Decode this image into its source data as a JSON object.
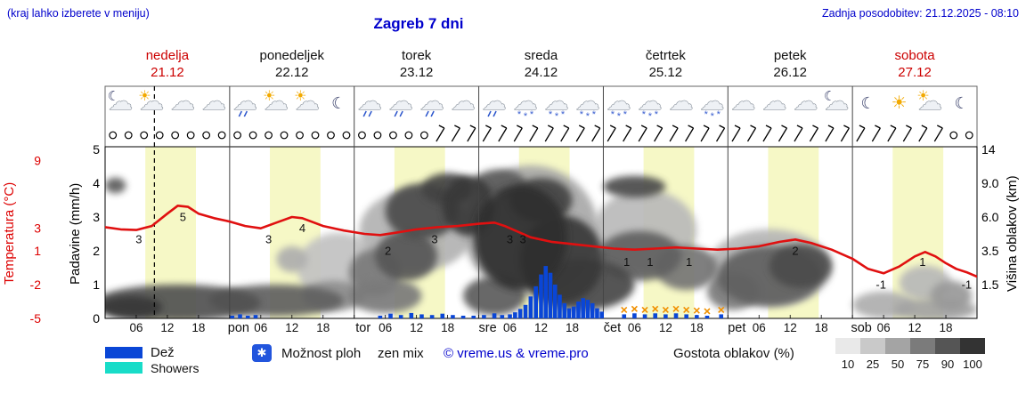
{
  "header": {
    "hint": "(kraj lahko izberete v meniju)",
    "title": "Zagreb 7 dni",
    "updated": "Zadnja posodobitev: 21.12.2025 - 08:10"
  },
  "axes": {
    "temp_label": "Temperatura (°C)",
    "precip_label": "Padavine (mm/h)",
    "cloud_label": "Višina oblakov (km)"
  },
  "days": [
    {
      "name": "nedelja",
      "date": "21.12",
      "color": "#cc0000"
    },
    {
      "name": "ponedeljek",
      "date": "22.12",
      "color": "#111111"
    },
    {
      "name": "torek",
      "date": "23.12",
      "color": "#111111"
    },
    {
      "name": "sreda",
      "date": "24.12",
      "color": "#111111"
    },
    {
      "name": "četrtek",
      "date": "25.12",
      "color": "#111111"
    },
    {
      "name": "petek",
      "date": "26.12",
      "color": "#111111"
    },
    {
      "name": "sobota",
      "date": "27.12",
      "color": "#cc0000"
    }
  ],
  "legend": {
    "rain": "Dež",
    "showers": "Showers",
    "chance_icon": "✱",
    "chance": "Možnost ploh",
    "frozen": "zen mix",
    "copyright": "© vreme.us & vreme.pro",
    "cloud_density": "Gostota oblakov (%)",
    "density_values": [
      "10",
      "25",
      "50",
      "75",
      "90",
      "100"
    ],
    "density_colors": [
      "#e9e9e9",
      "#c9c9c9",
      "#a4a4a4",
      "#7b7b7b",
      "#555555",
      "#333333"
    ]
  },
  "chart_data": {
    "type": "meteogram",
    "title": "Zagreb 7 dni",
    "x_unit": "hours_from_sunday_00",
    "x_range": [
      0,
      168
    ],
    "now_line_t": 9.5,
    "daylight_band_hours": [
      7.75,
      17.5
    ],
    "x_axis": {
      "hour_labels": [
        "06",
        "12",
        "18"
      ],
      "day_abbrevs": [
        "pon",
        "tor",
        "sre",
        "čet",
        "pet",
        "sob"
      ]
    },
    "temperature": {
      "unit": "°C",
      "color": "#e01010",
      "axis_ticks": [
        9,
        3,
        1,
        -2,
        -5
      ],
      "series": [
        [
          0,
          3.1
        ],
        [
          3,
          2.9
        ],
        [
          6,
          2.85
        ],
        [
          9,
          3.2
        ],
        [
          12,
          4.3
        ],
        [
          14,
          5.0
        ],
        [
          16,
          4.9
        ],
        [
          18,
          4.3
        ],
        [
          21,
          3.9
        ],
        [
          24,
          3.6
        ],
        [
          27,
          3.2
        ],
        [
          30,
          3.0
        ],
        [
          33,
          3.5
        ],
        [
          36,
          4.0
        ],
        [
          38,
          3.9
        ],
        [
          42,
          3.2
        ],
        [
          46,
          2.8
        ],
        [
          50,
          2.5
        ],
        [
          53,
          2.4
        ],
        [
          56,
          2.6
        ],
        [
          60,
          2.9
        ],
        [
          64,
          3.1
        ],
        [
          68,
          3.2
        ],
        [
          72,
          3.4
        ],
        [
          75,
          3.5
        ],
        [
          77,
          3.2
        ],
        [
          79,
          2.8
        ],
        [
          82,
          2.2
        ],
        [
          86,
          1.8
        ],
        [
          90,
          1.6
        ],
        [
          94,
          1.4
        ],
        [
          98,
          1.2
        ],
        [
          102,
          1.1
        ],
        [
          106,
          1.2
        ],
        [
          110,
          1.3
        ],
        [
          114,
          1.2
        ],
        [
          118,
          1.1
        ],
        [
          122,
          1.2
        ],
        [
          126,
          1.4
        ],
        [
          130,
          1.8
        ],
        [
          133,
          2.0
        ],
        [
          136,
          1.7
        ],
        [
          140,
          1.1
        ],
        [
          144,
          0.3
        ],
        [
          147,
          -0.6
        ],
        [
          150,
          -1.0
        ],
        [
          153,
          -0.4
        ],
        [
          156,
          0.5
        ],
        [
          158,
          0.9
        ],
        [
          160,
          0.5
        ],
        [
          162,
          -0.1
        ],
        [
          164,
          -0.6
        ],
        [
          166,
          -0.9
        ],
        [
          168,
          -1.3
        ]
      ],
      "point_labels": [
        [
          6.5,
          "3"
        ],
        [
          15,
          "5"
        ],
        [
          31.5,
          "3"
        ],
        [
          38,
          "4"
        ],
        [
          54.5,
          "2"
        ],
        [
          63.5,
          "3"
        ],
        [
          78,
          "3"
        ],
        [
          80.5,
          "3"
        ],
        [
          100.5,
          "1"
        ],
        [
          105,
          "1"
        ],
        [
          112.5,
          "1"
        ],
        [
          133,
          "2"
        ],
        [
          149.5,
          "-1"
        ],
        [
          157.5,
          "1"
        ],
        [
          166,
          "-1"
        ]
      ]
    },
    "precipitation": {
      "unit": "mm/h",
      "axis_ticks": [
        5,
        4,
        3,
        2,
        1,
        0
      ],
      "rain_color": "#0a46d6",
      "showers_color": "#18dcc8",
      "mix_color": "#f09000",
      "bars": [
        [
          24.5,
          0.08,
          "rain"
        ],
        [
          26,
          0.12,
          "rain"
        ],
        [
          27.5,
          0.08,
          "rain"
        ],
        [
          29,
          0.1,
          "rain"
        ],
        [
          53,
          0.08,
          "rain"
        ],
        [
          55,
          0.14,
          "rain"
        ],
        [
          57,
          0.1,
          "rain"
        ],
        [
          59,
          0.16,
          "rain"
        ],
        [
          61,
          0.12,
          "rain"
        ],
        [
          63,
          0.1,
          "rain"
        ],
        [
          65,
          0.14,
          "rain"
        ],
        [
          67,
          0.1,
          "rain"
        ],
        [
          69,
          0.08,
          "rain"
        ],
        [
          71,
          0.08,
          "rain"
        ],
        [
          73,
          0.1,
          "rain"
        ],
        [
          75,
          0.15,
          "rain"
        ],
        [
          76.5,
          0.1,
          "rain"
        ],
        [
          78,
          0.12,
          "rain"
        ],
        [
          79,
          0.18,
          "rain"
        ],
        [
          80,
          0.28,
          "rain"
        ],
        [
          81,
          0.4,
          "rain"
        ],
        [
          82,
          0.65,
          "rain"
        ],
        [
          83,
          0.95,
          "rain"
        ],
        [
          84,
          1.3,
          "rain"
        ],
        [
          84.9,
          1.55,
          "rain"
        ],
        [
          85.8,
          1.35,
          "rain"
        ],
        [
          86.7,
          1.0,
          "rain"
        ],
        [
          87.6,
          0.7,
          "rain"
        ],
        [
          88.5,
          0.45,
          "rain"
        ],
        [
          89.4,
          0.3,
          "rain"
        ],
        [
          90.3,
          0.35,
          "rain"
        ],
        [
          91.2,
          0.5,
          "rain"
        ],
        [
          92.1,
          0.6,
          "rain"
        ],
        [
          93,
          0.55,
          "rain"
        ],
        [
          93.9,
          0.45,
          "rain"
        ],
        [
          94.8,
          0.3,
          "rain"
        ],
        [
          95.7,
          0.2,
          "rain"
        ],
        [
          100,
          0.12,
          "mix"
        ],
        [
          102,
          0.15,
          "mix"
        ],
        [
          104,
          0.12,
          "mix"
        ],
        [
          106,
          0.15,
          "mix"
        ],
        [
          108,
          0.12,
          "mix"
        ],
        [
          110,
          0.15,
          "mix"
        ],
        [
          112,
          0.12,
          "mix"
        ],
        [
          114,
          0.1,
          "mix"
        ],
        [
          116,
          0.08,
          "mix"
        ],
        [
          118.7,
          0.12,
          "mix"
        ]
      ]
    },
    "cloud_height": {
      "unit": "km",
      "axis_ticks": [
        {
          "label": "14",
          "row": 5
        },
        {
          "label": "9.0",
          "row": 4
        },
        {
          "label": "6.0",
          "row": 3
        },
        {
          "label": "3.5",
          "row": 2
        },
        {
          "label": "1.5",
          "row": 1
        }
      ],
      "blobs": [
        [
          14,
          0.7,
          16,
          0.8,
          75
        ],
        [
          5,
          0.5,
          6,
          0.5,
          88
        ],
        [
          2,
          8.8,
          2,
          0.8,
          70
        ],
        [
          33,
          0.8,
          13,
          0.7,
          68
        ],
        [
          44,
          1.0,
          6,
          0.7,
          45
        ],
        [
          36,
          3,
          3,
          0.8,
          30
        ],
        [
          45,
          2.5,
          8,
          2,
          20
        ],
        [
          52,
          2.2,
          5,
          1.3,
          55
        ],
        [
          54,
          1,
          7,
          0.8,
          55
        ],
        [
          58,
          3.2,
          6,
          1.6,
          72
        ],
        [
          61,
          6.5,
          7,
          2.3,
          78
        ],
        [
          66,
          8.5,
          5,
          1.6,
          82
        ],
        [
          70,
          7,
          5,
          2.6,
          88
        ],
        [
          60,
          5,
          11,
          3,
          28
        ],
        [
          76,
          9,
          5,
          1.5,
          70
        ],
        [
          80,
          4.5,
          9,
          3.6,
          92
        ],
        [
          84,
          7.5,
          6,
          2,
          82
        ],
        [
          88,
          3,
          8,
          2.6,
          88
        ],
        [
          92,
          1.5,
          10,
          1.3,
          80
        ],
        [
          75,
          1,
          6,
          0.9,
          70
        ],
        [
          82,
          5,
          13,
          4.6,
          32
        ],
        [
          102,
          8.7,
          6,
          1.1,
          78
        ],
        [
          103,
          3.2,
          8,
          1.6,
          68
        ],
        [
          112,
          2.5,
          6,
          1.3,
          58
        ],
        [
          104,
          5,
          10,
          3,
          24
        ],
        [
          121,
          1.2,
          5,
          0.9,
          55
        ],
        [
          128,
          2,
          10,
          1.6,
          68
        ],
        [
          134,
          2.6,
          6,
          1.3,
          78
        ],
        [
          128,
          2.5,
          12,
          2.2,
          26
        ],
        [
          150,
          0.6,
          6,
          0.6,
          30
        ],
        [
          158,
          1.6,
          5,
          0.9,
          25
        ],
        [
          163,
          1,
          4,
          0.7,
          40
        ],
        [
          160,
          0.4,
          8,
          0.5,
          35
        ]
      ]
    },
    "icons": [
      "mc",
      "sc",
      "c",
      "c",
      "cr",
      "sc",
      "sc",
      "m",
      "cr",
      "cr",
      "cr",
      "c",
      "cr",
      "cs",
      "cs",
      "cs",
      "cs",
      "cs",
      "c",
      "cs",
      "c",
      "c",
      "c",
      "mc",
      "m",
      "s",
      "sc",
      "m"
    ],
    "wind_symbols": "ooooooooooooooooooooobbbbbbbbbbbbbbbbbbbbbbbbbbbbbbbbboo"
  }
}
